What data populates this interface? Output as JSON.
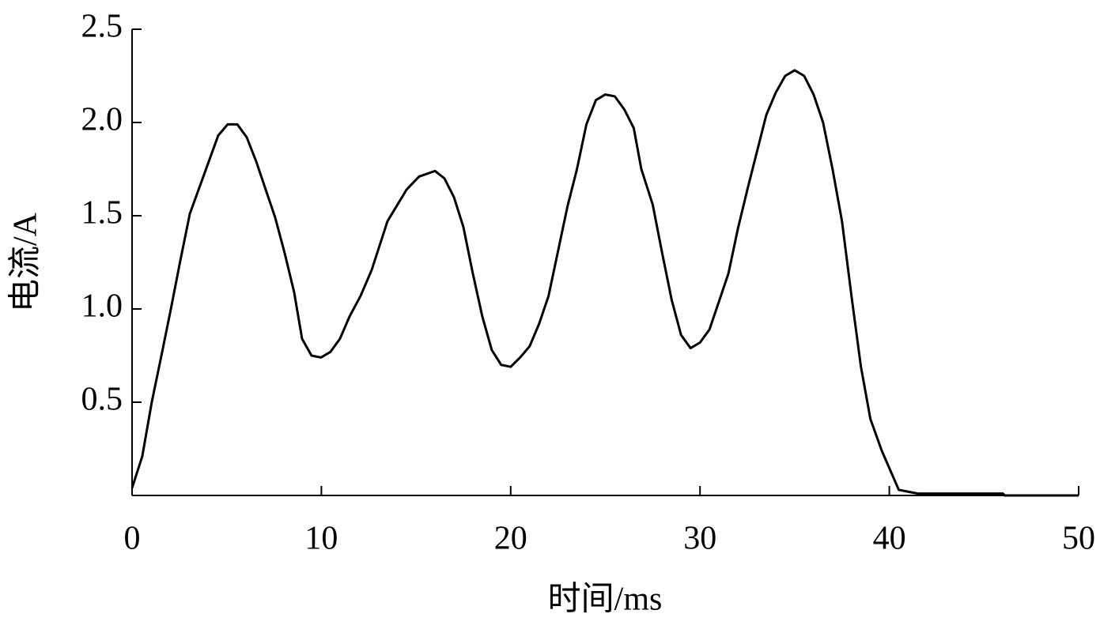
{
  "chart_data": {
    "type": "line",
    "xlabel": "时间/ms",
    "ylabel": "电流/A",
    "xlim": [
      0,
      50
    ],
    "xticks": [
      0,
      10,
      20,
      30,
      40,
      50
    ],
    "ylim": [
      0,
      2.5
    ],
    "yticks": [
      0.5,
      {
        "value": 1,
        "label": "1.0"
      },
      1.5,
      {
        "value": 2,
        "label": "2.0"
      },
      2.5
    ],
    "x": [
      0,
      0.54,
      1.04,
      1.55,
      2.05,
      2.55,
      3.05,
      3.55,
      4.05,
      4.55,
      5.05,
      5.56,
      6.06,
      6.56,
      7.06,
      7.56,
      8.06,
      8.56,
      8.98,
      9.48,
      9.98,
      10.48,
      10.98,
      11.49,
      12.07,
      12.66,
      13.49,
      14.5,
      15.16,
      16.0,
      16.5,
      17.0,
      17.5,
      18.0,
      18.5,
      19.0,
      19.5,
      20.0,
      20.5,
      21.0,
      21.5,
      22.0,
      22.5,
      23.0,
      23.5,
      24.0,
      24.5,
      25.0,
      25.5,
      26.0,
      26.5,
      26.9,
      27.5,
      28.0,
      28.5,
      29.0,
      29.5,
      30.0,
      30.5,
      31.0,
      31.5,
      32.0,
      32.5,
      33.0,
      33.5,
      34.0,
      34.5,
      35.0,
      35.5,
      36.0,
      36.5,
      37.0,
      37.5,
      38.0,
      38.5,
      39.0,
      39.6,
      40.5,
      41.5,
      46.0,
      46.1,
      50
    ],
    "series": [
      {
        "name": "电流",
        "color": "#000000",
        "values": [
          0.04,
          0.21,
          0.5,
          0.75,
          1.0,
          1.26,
          1.51,
          1.65,
          1.79,
          1.93,
          1.99,
          1.99,
          1.92,
          1.79,
          1.64,
          1.49,
          1.3,
          1.09,
          0.84,
          0.75,
          0.74,
          0.77,
          0.84,
          0.96,
          1.07,
          1.21,
          1.47,
          1.64,
          1.71,
          1.74,
          1.7,
          1.6,
          1.44,
          1.19,
          0.96,
          0.78,
          0.7,
          0.69,
          0.74,
          0.8,
          0.92,
          1.07,
          1.31,
          1.55,
          1.75,
          1.99,
          2.12,
          2.15,
          2.14,
          2.07,
          1.97,
          1.75,
          1.56,
          1.3,
          1.05,
          0.86,
          0.79,
          0.82,
          0.89,
          1.04,
          1.19,
          1.43,
          1.64,
          1.84,
          2.04,
          2.16,
          2.25,
          2.28,
          2.25,
          2.15,
          2.0,
          1.75,
          1.47,
          1.07,
          0.69,
          0.41,
          0.24,
          0.03,
          0.01,
          0.01,
          0,
          0
        ]
      }
    ]
  }
}
